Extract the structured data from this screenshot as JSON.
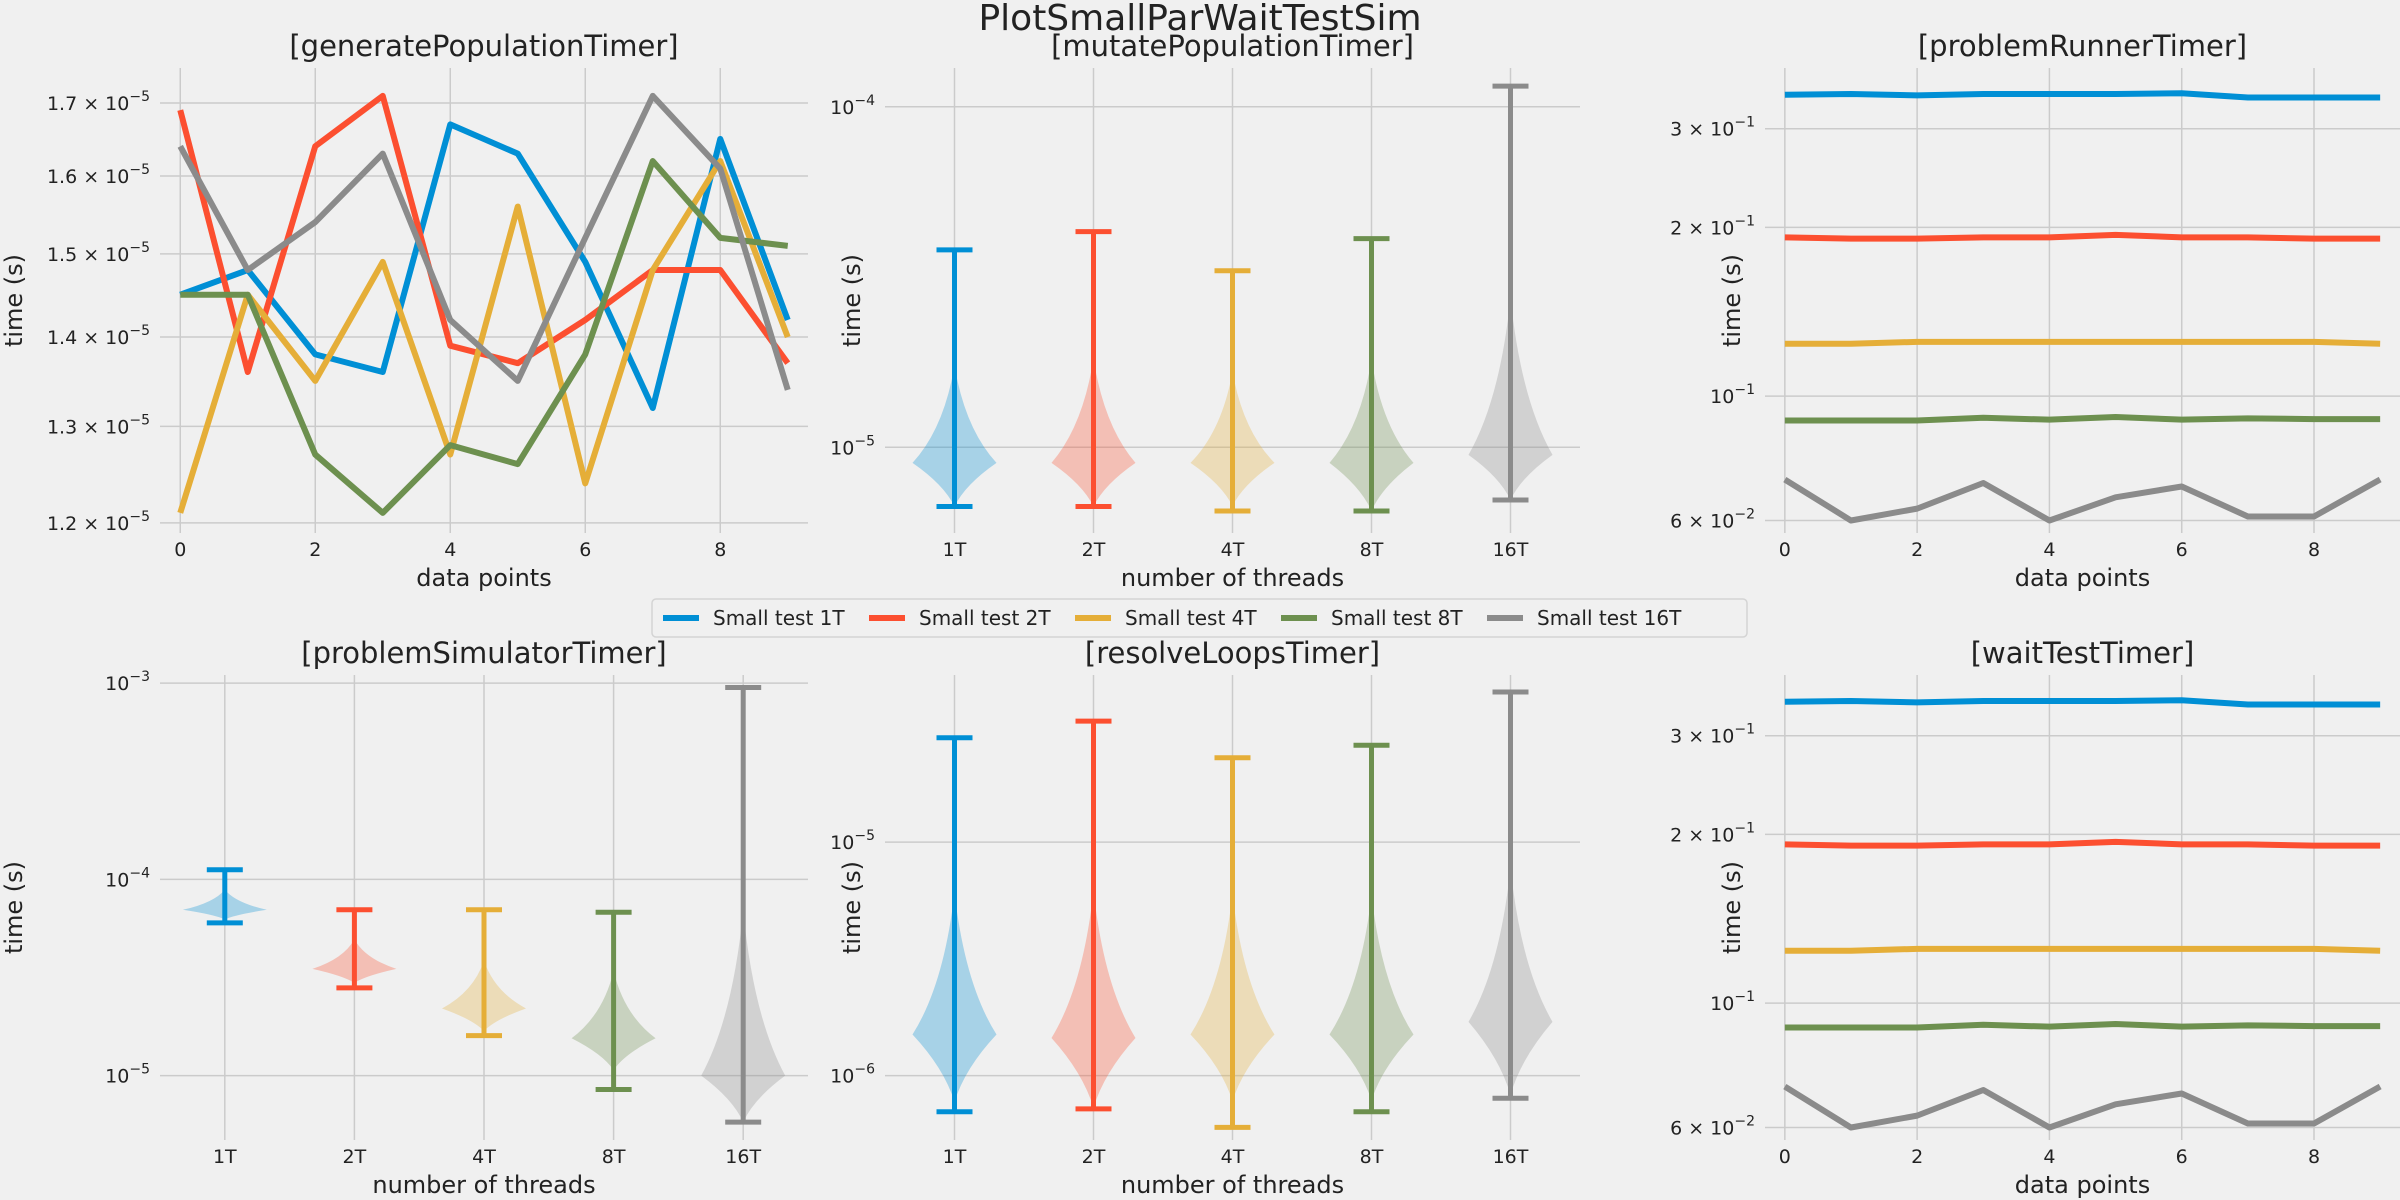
{
  "figure_title": "PlotSmallParWaitTestSim",
  "legend": [
    {
      "label": "Small test 1T",
      "color": "#008fd5"
    },
    {
      "label": "Small test 2T",
      "color": "#fc4f30"
    },
    {
      "label": "Small test 4T",
      "color": "#e5ae38"
    },
    {
      "label": "Small test 8T",
      "color": "#6d904f"
    },
    {
      "label": "Small test 16T",
      "color": "#8b8b8b"
    }
  ],
  "chart_data": [
    {
      "type": "line",
      "title": "[generatePopulationTimer]",
      "xlabel": "data points",
      "ylabel": "time (s)",
      "yscale": "log",
      "ylim": [
        1.19e-05,
        1.75e-05
      ],
      "xlim": [
        -0.3,
        9.3
      ],
      "xticks": [
        0,
        2,
        4,
        6,
        8
      ],
      "yticks": [
        {
          "value": 1.2e-05,
          "mant": "1.2",
          "exp": "−5"
        },
        {
          "value": 1.3e-05,
          "mant": "1.3",
          "exp": "−5"
        },
        {
          "value": 1.4e-05,
          "mant": "1.4",
          "exp": "−5"
        },
        {
          "value": 1.5e-05,
          "mant": "1.5",
          "exp": "−5"
        },
        {
          "value": 1.6e-05,
          "mant": "1.6",
          "exp": "−5"
        },
        {
          "value": 1.7e-05,
          "mant": "1.7",
          "exp": "−5"
        }
      ],
      "x": [
        0,
        1,
        2,
        3,
        4,
        5,
        6,
        7,
        8,
        9
      ],
      "series": [
        {
          "name": "Small test 1T",
          "values": [
            1.45e-05,
            1.48e-05,
            1.38e-05,
            1.36e-05,
            1.67e-05,
            1.63e-05,
            1.49e-05,
            1.32e-05,
            1.65e-05,
            1.42e-05
          ]
        },
        {
          "name": "Small test 2T",
          "values": [
            1.69e-05,
            1.36e-05,
            1.64e-05,
            1.71e-05,
            1.39e-05,
            1.37e-05,
            1.42e-05,
            1.48e-05,
            1.48e-05,
            1.37e-05
          ]
        },
        {
          "name": "Small test 4T",
          "values": [
            1.21e-05,
            1.45e-05,
            1.35e-05,
            1.49e-05,
            1.27e-05,
            1.56e-05,
            1.24e-05,
            1.48e-05,
            1.62e-05,
            1.4e-05
          ]
        },
        {
          "name": "Small test 8T",
          "values": [
            1.45e-05,
            1.45e-05,
            1.27e-05,
            1.21e-05,
            1.28e-05,
            1.26e-05,
            1.38e-05,
            1.62e-05,
            1.52e-05,
            1.51e-05
          ]
        },
        {
          "name": "Small test 16T",
          "values": [
            1.64e-05,
            1.48e-05,
            1.54e-05,
            1.63e-05,
            1.42e-05,
            1.35e-05,
            1.52e-05,
            1.71e-05,
            1.61e-05,
            1.34e-05
          ]
        }
      ]
    },
    {
      "type": "violin",
      "title": "[mutatePopulationTimer]",
      "xlabel": "number of threads",
      "ylabel": "time (s)",
      "yscale": "log",
      "ylim": [
        5.6e-06,
        0.00013
      ],
      "categories": [
        "1T",
        "2T",
        "4T",
        "8T",
        "16T"
      ],
      "yticks": [
        {
          "value": 1e-05,
          "mant": "10",
          "exp": "−5"
        },
        {
          "value": 0.0001,
          "mant": "10",
          "exp": "−4"
        }
      ],
      "violins": [
        {
          "min": 6.7e-06,
          "max": 3.8e-05,
          "median": 9e-06
        },
        {
          "min": 6.7e-06,
          "max": 4.3e-05,
          "median": 9e-06
        },
        {
          "min": 6.5e-06,
          "max": 3.3e-05,
          "median": 9e-06
        },
        {
          "min": 6.5e-06,
          "max": 4.1e-05,
          "median": 9e-06
        },
        {
          "min": 7e-06,
          "max": 0.000115,
          "median": 9.5e-06
        }
      ]
    },
    {
      "type": "line",
      "title": "[problemRunnerTimer]",
      "xlabel": "data points",
      "ylabel": "time (s)",
      "yscale": "log",
      "ylim": [
        0.057,
        0.385
      ],
      "xlim": [
        -0.3,
        9.3
      ],
      "xticks": [
        0,
        2,
        4,
        6,
        8
      ],
      "yticks": [
        {
          "value": 0.06,
          "mant": "6",
          "exp": "−2"
        },
        {
          "value": 0.1,
          "mant": "10",
          "exp": "−1",
          "power_only": true
        },
        {
          "value": 0.2,
          "mant": "2",
          "exp": "−1"
        },
        {
          "value": 0.3,
          "mant": "3",
          "exp": "−1"
        }
      ],
      "x": [
        0,
        1,
        2,
        3,
        4,
        5,
        6,
        7,
        8,
        9
      ],
      "series": [
        {
          "name": "Small test 1T",
          "values": [
            0.345,
            0.346,
            0.344,
            0.346,
            0.346,
            0.346,
            0.347,
            0.341,
            0.341,
            0.341
          ]
        },
        {
          "name": "Small test 2T",
          "values": [
            0.192,
            0.191,
            0.191,
            0.192,
            0.192,
            0.194,
            0.192,
            0.192,
            0.191,
            0.191
          ]
        },
        {
          "name": "Small test 4T",
          "values": [
            0.124,
            0.124,
            0.125,
            0.125,
            0.125,
            0.125,
            0.125,
            0.125,
            0.125,
            0.124
          ]
        },
        {
          "name": "Small test 8T",
          "values": [
            0.0905,
            0.0905,
            0.0905,
            0.0915,
            0.0908,
            0.0918,
            0.0908,
            0.0913,
            0.091,
            0.091
          ]
        },
        {
          "name": "Small test 16T",
          "values": [
            0.071,
            0.06,
            0.063,
            0.07,
            0.06,
            0.066,
            0.069,
            0.061,
            0.061,
            0.071
          ]
        }
      ]
    },
    {
      "type": "violin",
      "title": "[problemSimulatorTimer]",
      "xlabel": "number of threads",
      "ylabel": "time (s)",
      "yscale": "log",
      "ylim": [
        4.7e-06,
        0.0011
      ],
      "categories": [
        "1T",
        "2T",
        "4T",
        "8T",
        "16T"
      ],
      "yticks": [
        {
          "value": 1e-05,
          "mant": "10",
          "exp": "−5"
        },
        {
          "value": 0.0001,
          "mant": "10",
          "exp": "−4"
        },
        {
          "value": 0.001,
          "mant": "10",
          "exp": "−3"
        }
      ],
      "violins": [
        {
          "min": 6e-05,
          "max": 0.000112,
          "median": 7e-05
        },
        {
          "min": 2.8e-05,
          "max": 7e-05,
          "median": 3.5e-05
        },
        {
          "min": 1.6e-05,
          "max": 7e-05,
          "median": 2.2e-05
        },
        {
          "min": 8.5e-06,
          "max": 6.8e-05,
          "median": 1.55e-05
        },
        {
          "min": 5.8e-06,
          "max": 0.00095,
          "median": 1e-05
        }
      ]
    },
    {
      "type": "violin",
      "title": "[resolveLoopsTimer]",
      "xlabel": "number of threads",
      "ylabel": "time (s)",
      "yscale": "log",
      "ylim": [
        5.3e-07,
        5.2e-05
      ],
      "categories": [
        "1T",
        "2T",
        "4T",
        "8T",
        "16T"
      ],
      "yticks": [
        {
          "value": 1e-06,
          "mant": "10",
          "exp": "−6"
        },
        {
          "value": 1e-05,
          "mant": "10",
          "exp": "−5"
        }
      ],
      "violins": [
        {
          "min": 7e-07,
          "max": 2.8e-05,
          "median": 1.5e-06
        },
        {
          "min": 7.2e-07,
          "max": 3.3e-05,
          "median": 1.45e-06
        },
        {
          "min": 6e-07,
          "max": 2.3e-05,
          "median": 1.5e-06
        },
        {
          "min": 7e-07,
          "max": 2.6e-05,
          "median": 1.5e-06
        },
        {
          "min": 8e-07,
          "max": 4.4e-05,
          "median": 1.7e-06
        }
      ]
    },
    {
      "type": "line",
      "title": "[waitTestTimer]",
      "xlabel": "data points",
      "ylabel": "time (s)",
      "yscale": "log",
      "ylim": [
        0.057,
        0.385
      ],
      "xlim": [
        -0.3,
        9.3
      ],
      "xticks": [
        0,
        2,
        4,
        6,
        8
      ],
      "yticks": [
        {
          "value": 0.06,
          "mant": "6",
          "exp": "−2"
        },
        {
          "value": 0.1,
          "mant": "10",
          "exp": "−1",
          "power_only": true
        },
        {
          "value": 0.2,
          "mant": "2",
          "exp": "−1"
        },
        {
          "value": 0.3,
          "mant": "3",
          "exp": "−1"
        }
      ],
      "x": [
        0,
        1,
        2,
        3,
        4,
        5,
        6,
        7,
        8,
        9
      ],
      "series": [
        {
          "name": "Small test 1T",
          "values": [
            0.345,
            0.346,
            0.344,
            0.346,
            0.346,
            0.346,
            0.347,
            0.341,
            0.341,
            0.341
          ]
        },
        {
          "name": "Small test 2T",
          "values": [
            0.192,
            0.191,
            0.191,
            0.192,
            0.192,
            0.194,
            0.192,
            0.192,
            0.191,
            0.191
          ]
        },
        {
          "name": "Small test 4T",
          "values": [
            0.124,
            0.124,
            0.125,
            0.125,
            0.125,
            0.125,
            0.125,
            0.125,
            0.125,
            0.124
          ]
        },
        {
          "name": "Small test 8T",
          "values": [
            0.0905,
            0.0905,
            0.0905,
            0.0915,
            0.0908,
            0.0918,
            0.0908,
            0.0913,
            0.091,
            0.091
          ]
        },
        {
          "name": "Small test 16T",
          "values": [
            0.071,
            0.06,
            0.063,
            0.07,
            0.06,
            0.066,
            0.069,
            0.061,
            0.061,
            0.071
          ]
        }
      ]
    }
  ]
}
